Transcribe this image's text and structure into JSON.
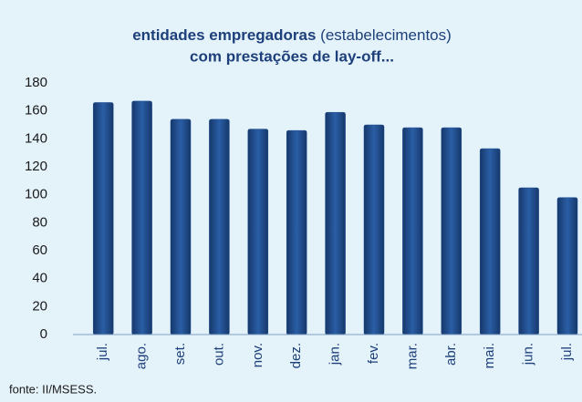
{
  "chart_data": {
    "type": "bar",
    "title": [
      "entidades empregadoras",
      "(estabelecimentos)",
      "com prestações de lay-off..."
    ],
    "annotations": [
      "fonte: II/MSESS."
    ],
    "categories": [
      "jul.",
      "ago.",
      "set.",
      "out.",
      "nov.",
      "dez.",
      "jan.",
      "fev.",
      "mar.",
      "abr.",
      "mai.",
      "jun.",
      "jul."
    ],
    "values": [
      166,
      167,
      154,
      154,
      147,
      146,
      159,
      150,
      148,
      148,
      133,
      105,
      98
    ],
    "color": "#1f4d8f",
    "ylim": [
      0,
      180
    ],
    "yticks": [
      0,
      20,
      40,
      60,
      80,
      100,
      120,
      140,
      160,
      180
    ],
    "grid": false
  }
}
